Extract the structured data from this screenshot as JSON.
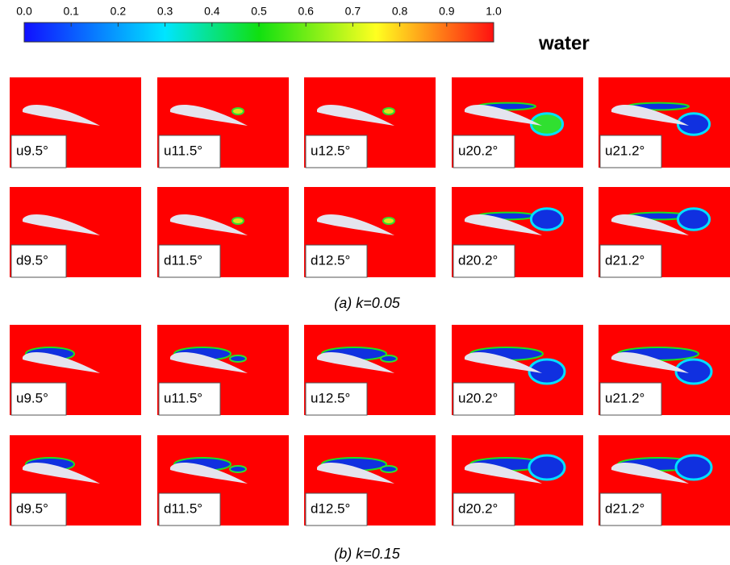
{
  "colorbar": {
    "ticks": [
      {
        "value": 0,
        "label": "0.0"
      },
      0.1,
      0.2,
      0.3,
      0.4,
      0.5,
      0.6,
      0.7,
      0.8,
      0.9,
      {
        "value": 1,
        "label": "1.0"
      }
    ],
    "label": "water"
  },
  "groups": [
    {
      "caption": "(a) k=0.05",
      "rows": [
        [
          "u9.5°",
          "u11.5°",
          "u12.5°",
          "u20.2°",
          "u21.2°"
        ],
        [
          "d9.5°",
          "d11.5°",
          "d12.5°",
          "d20.2°",
          "d21.2°"
        ]
      ]
    },
    {
      "caption": "(b) k=0.15",
      "rows": [
        [
          "u9.5°",
          "u11.5°",
          "u12.5°",
          "u20.2°",
          "u21.2°"
        ],
        [
          "d9.5°",
          "d11.5°",
          "d12.5°",
          "d20.2°",
          "d21.2°"
        ]
      ]
    }
  ]
}
